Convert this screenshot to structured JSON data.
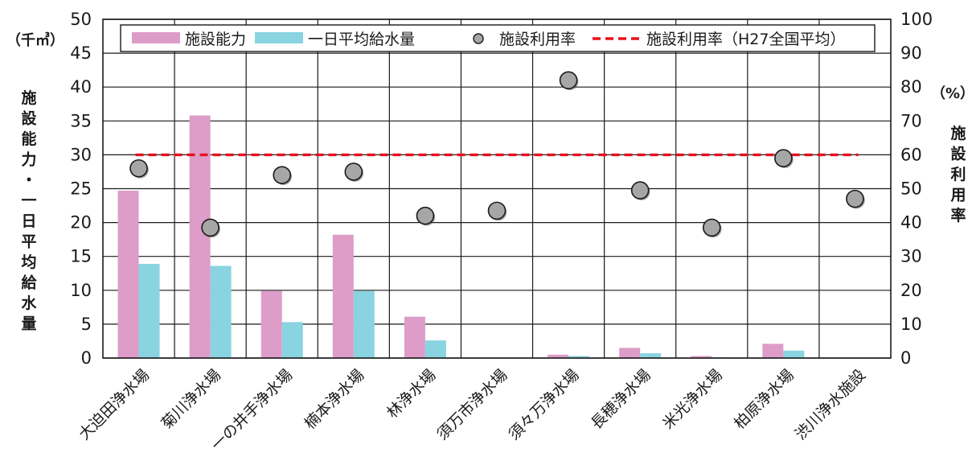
{
  "chart_data": {
    "type": "bar",
    "categories": [
      "大迫田浄水場",
      "菊川浄水場",
      "一の井手浄水場",
      "楠本浄水場",
      "林浄水場",
      "須万市浄水場",
      "須々万浄水場",
      "長穂浄水場",
      "米光浄水場",
      "柏原浄水場",
      "渋川浄水施設"
    ],
    "series": [
      {
        "name": "施設能力",
        "axis": "left",
        "kind": "bar",
        "color": "#dd9dc8",
        "values": [
          24.7,
          35.8,
          9.9,
          18.2,
          6.1,
          0,
          0.5,
          1.5,
          0.3,
          2.1,
          0
        ]
      },
      {
        "name": "一日平均給水量",
        "axis": "left",
        "kind": "bar",
        "color": "#89d4e0",
        "values": [
          13.9,
          13.6,
          5.3,
          9.9,
          2.6,
          0,
          0.3,
          0.7,
          0.1,
          1.1,
          0
        ]
      },
      {
        "name": "施設利用率",
        "axis": "right",
        "kind": "scatter",
        "color": "#a6a6a6",
        "values": [
          56,
          38.5,
          54,
          55,
          42,
          43.5,
          82,
          49.5,
          38.5,
          59,
          47
        ]
      },
      {
        "name": "施設利用率（H27全国平均）",
        "axis": "right",
        "kind": "line",
        "style": "dashed",
        "color": "#e8101c",
        "value": 60
      }
    ],
    "y_left": {
      "label": "施設能力・一日平均給水量",
      "unit": "（千㎥）",
      "lim": [
        0,
        50
      ],
      "ticks": [
        "0",
        "5",
        "10",
        "15",
        "20",
        "25",
        "30",
        "35",
        "40",
        "45",
        "50"
      ]
    },
    "y_right": {
      "label": "施設利用率",
      "unit": "（%）",
      "lim": [
        0,
        100
      ],
      "ticks": [
        "0",
        "10",
        "20",
        "30",
        "40",
        "50",
        "60",
        "70",
        "80",
        "90",
        "100"
      ]
    },
    "grid": true,
    "legend_position": "top"
  }
}
